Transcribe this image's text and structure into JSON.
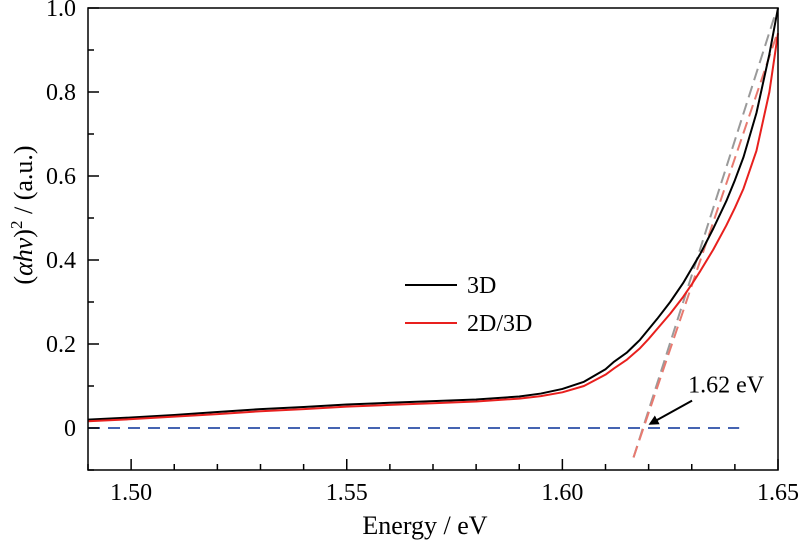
{
  "chart_data": {
    "type": "line",
    "xlabel": "Energy / eV",
    "ylabel_parts": [
      "(",
      "αhν",
      ")",
      "2",
      " / (a.u.)"
    ],
    "xlim": [
      1.49,
      1.65
    ],
    "ylim": [
      -0.1,
      1.0
    ],
    "xticks": [
      1.5,
      1.55,
      1.6,
      1.65
    ],
    "xtick_labels": [
      "1.50",
      "1.55",
      "1.60",
      "1.65"
    ],
    "yticks": [
      0,
      0.2,
      0.4,
      0.6,
      0.8,
      1.0
    ],
    "ytick_labels": [
      "0",
      "0.2",
      "0.4",
      "0.6",
      "0.8",
      "1.0"
    ],
    "grid": false,
    "legend_position": "center",
    "series": [
      {
        "name": "3D",
        "color": "#000000",
        "x": [
          1.49,
          1.5,
          1.51,
          1.52,
          1.53,
          1.54,
          1.55,
          1.56,
          1.57,
          1.58,
          1.59,
          1.595,
          1.6,
          1.605,
          1.61,
          1.612,
          1.615,
          1.618,
          1.62,
          1.622,
          1.625,
          1.628,
          1.63,
          1.632,
          1.635,
          1.638,
          1.64,
          1.642,
          1.645,
          1.648,
          1.65
        ],
        "y": [
          0.02,
          0.025,
          0.031,
          0.038,
          0.045,
          0.05,
          0.056,
          0.06,
          0.064,
          0.068,
          0.075,
          0.082,
          0.093,
          0.11,
          0.14,
          0.158,
          0.18,
          0.21,
          0.235,
          0.26,
          0.3,
          0.345,
          0.38,
          0.415,
          0.475,
          0.54,
          0.59,
          0.645,
          0.75,
          0.89,
          1.0
        ]
      },
      {
        "name": "2D/3D",
        "color": "#e8201e",
        "x": [
          1.49,
          1.5,
          1.51,
          1.52,
          1.53,
          1.54,
          1.55,
          1.56,
          1.57,
          1.58,
          1.59,
          1.595,
          1.6,
          1.605,
          1.61,
          1.612,
          1.615,
          1.618,
          1.62,
          1.622,
          1.625,
          1.628,
          1.63,
          1.632,
          1.635,
          1.638,
          1.64,
          1.642,
          1.645,
          1.648,
          1.65
        ],
        "y": [
          0.016,
          0.021,
          0.027,
          0.033,
          0.04,
          0.045,
          0.051,
          0.055,
          0.059,
          0.063,
          0.07,
          0.076,
          0.085,
          0.1,
          0.127,
          0.142,
          0.163,
          0.19,
          0.212,
          0.236,
          0.272,
          0.312,
          0.342,
          0.374,
          0.425,
          0.482,
          0.524,
          0.57,
          0.66,
          0.8,
          0.94
        ]
      }
    ],
    "fit_lines": [
      {
        "color": "#9a9a9a",
        "x": [
          1.6165,
          1.6495
        ],
        "y": [
          -0.07,
          0.99
        ]
      },
      {
        "color": "#e87a70",
        "x": [
          1.6165,
          1.65
        ],
        "y": [
          -0.07,
          0.945
        ]
      }
    ],
    "baseline": {
      "color": "#2b4ea8",
      "x": [
        1.49,
        1.641
      ],
      "y": [
        0,
        0
      ]
    },
    "annotation": {
      "text": "1.62 eV",
      "point": {
        "x": 1.619,
        "y": 0.01
      },
      "text_at": {
        "x": 1.631,
        "y": 0.07
      }
    }
  }
}
